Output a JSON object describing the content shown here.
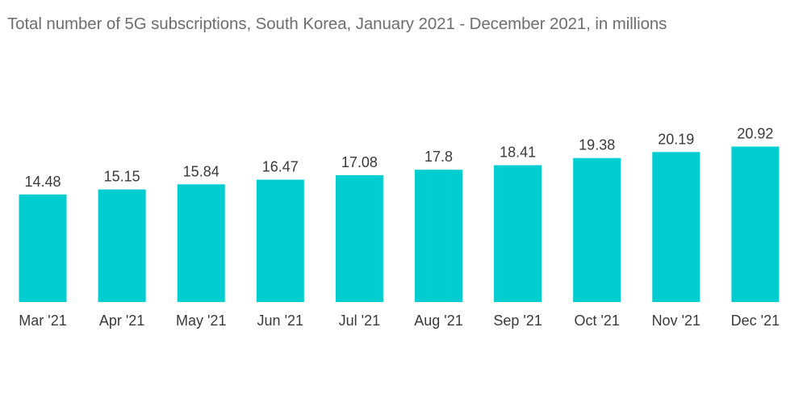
{
  "chart_data": {
    "type": "bar",
    "title": "Total number of 5G subscriptions, South Korea, January 2021 - December 2021, in millions",
    "categories": [
      "Mar '21",
      "Apr '21",
      "May '21",
      "Jun '21",
      "Jul '21",
      "Aug '21",
      "Sep '21",
      "Oct '21",
      "Nov '21",
      "Dec '21"
    ],
    "values": [
      14.48,
      15.15,
      15.84,
      16.47,
      17.08,
      17.8,
      18.41,
      19.38,
      20.19,
      20.92
    ],
    "value_labels": [
      "14.48",
      "15.15",
      "15.84",
      "16.47",
      "17.08",
      "17.8",
      "18.41",
      "19.38",
      "20.19",
      "20.92"
    ],
    "xlabel": "",
    "ylabel": "",
    "grid": false,
    "legend": "none",
    "bar_color": "#00cdd0"
  }
}
